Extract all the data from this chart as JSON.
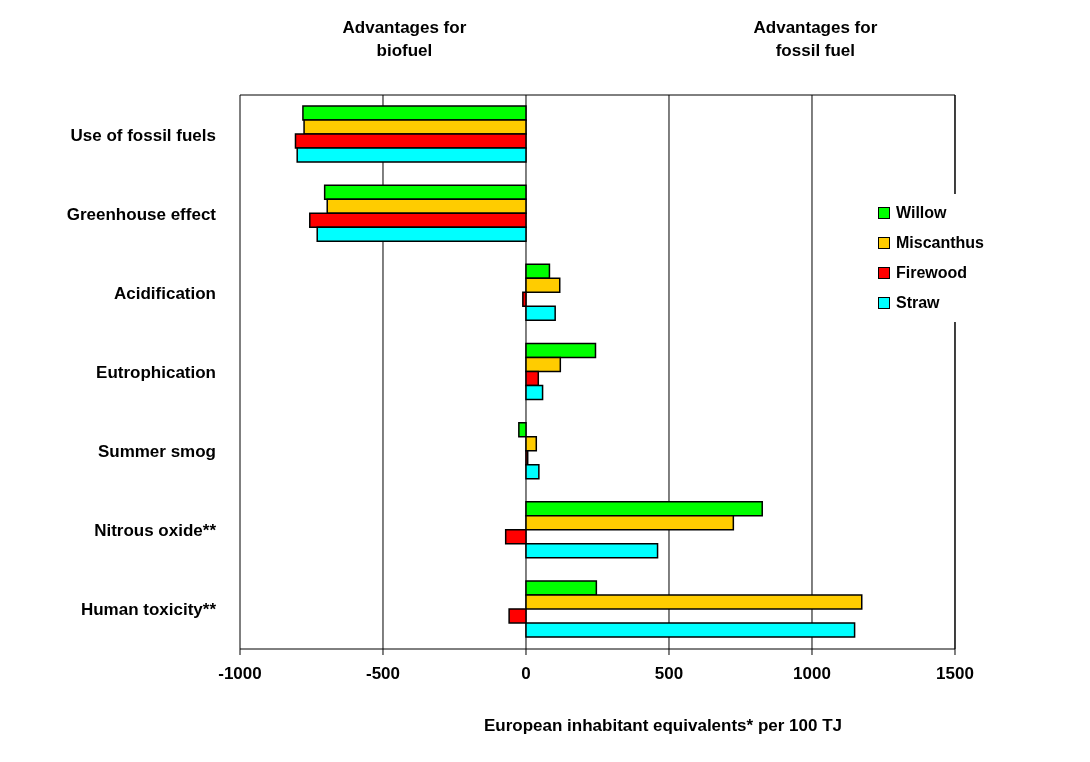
{
  "chart_data": {
    "type": "bar",
    "orientation": "horizontal",
    "xlabel": "European inhabitant equivalents* per 100 TJ",
    "annotations": [
      "Advantages for\nbiofuel",
      "Advantages for\nfossil fuel"
    ],
    "categories": [
      "Use of fossil fuels",
      "Greenhouse effect",
      "Acidification",
      "Eutrophication",
      "Summer smog",
      "Nitrous oxide**",
      "Human toxicity**"
    ],
    "series": [
      {
        "name": "Willow",
        "color": "#00ff00",
        "values": [
          -780,
          -704,
          82,
          243,
          -25,
          826,
          246
        ]
      },
      {
        "name": "Miscanthus",
        "color": "#ffcc00",
        "values": [
          -776,
          -695,
          118,
          120,
          36,
          725,
          1174
        ]
      },
      {
        "name": "Firewood",
        "color": "#ff0000",
        "values": [
          -806,
          -756,
          -11,
          43,
          6,
          -71,
          -59
        ]
      },
      {
        "name": "Straw",
        "color": "#00ffff",
        "values": [
          -800,
          -730,
          102,
          58,
          45,
          460,
          1149
        ]
      }
    ],
    "xlim": [
      -1000,
      1500
    ],
    "xticks": [
      -1000,
      -500,
      0,
      500,
      1000,
      1500
    ],
    "grid": "x",
    "legend": "top right"
  }
}
